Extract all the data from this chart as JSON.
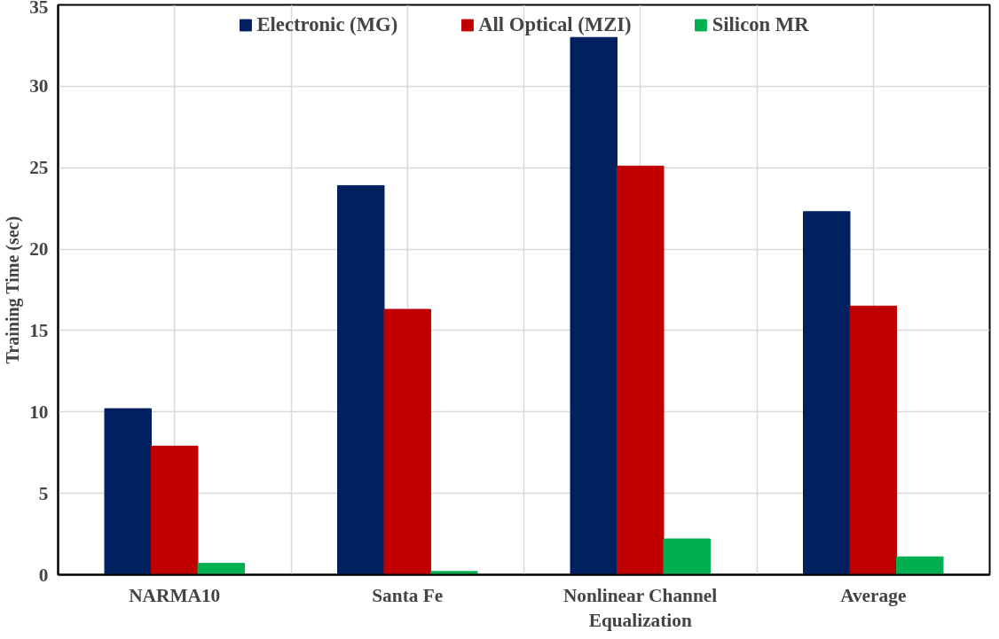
{
  "chart_data": {
    "type": "bar",
    "ylabel": "Training Time (sec)",
    "categories": [
      "NARMA10",
      "Santa Fe",
      "Nonlinear Channel Equalization",
      "Average"
    ],
    "series": [
      {
        "name": "Electronic (MG)",
        "color": "#002060",
        "values": [
          10.2,
          23.9,
          33.0,
          22.3
        ]
      },
      {
        "name": "All Optical (MZI)",
        "color": "#c00000",
        "values": [
          7.9,
          16.3,
          25.1,
          16.5
        ]
      },
      {
        "name": "Silicon MR",
        "color": "#00b050",
        "values": [
          0.7,
          0.2,
          2.2,
          1.1
        ]
      }
    ],
    "ylim": [
      0,
      35
    ],
    "yticks": [
      0,
      5,
      10,
      15,
      20,
      25,
      30,
      35
    ],
    "grid": true,
    "legend": "top"
  }
}
